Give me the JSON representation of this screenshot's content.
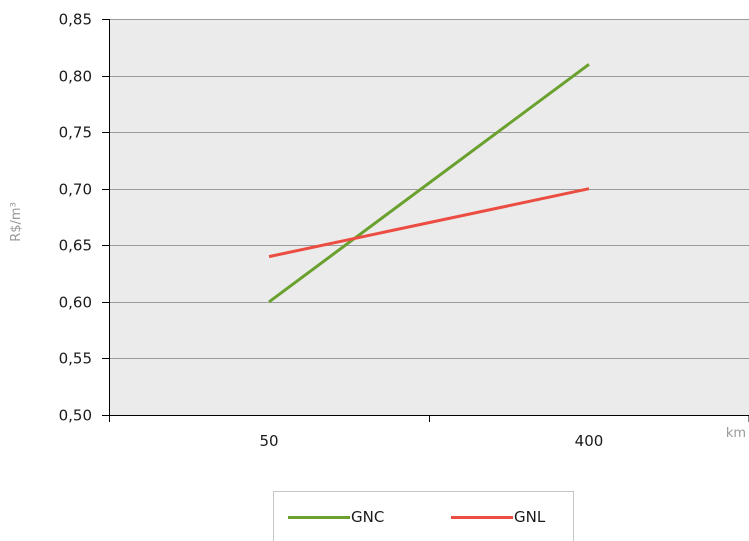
{
  "chart_data": {
    "type": "line",
    "xlabel": "km",
    "ylabel": "R$/m³",
    "categories": [
      "50",
      "400"
    ],
    "ylim": [
      0.5,
      0.85
    ],
    "yticks": [
      "0,50",
      "0,55",
      "0,60",
      "0,65",
      "0,70",
      "0,75",
      "0,80",
      "0,85"
    ],
    "grid": true,
    "legend_position": "bottom",
    "series": [
      {
        "name": "GNC",
        "values": [
          0.6,
          0.81
        ],
        "color": "#6aa12e"
      },
      {
        "name": "GNL",
        "values": [
          0.64,
          0.7
        ],
        "color": "#ec4d42"
      }
    ]
  }
}
